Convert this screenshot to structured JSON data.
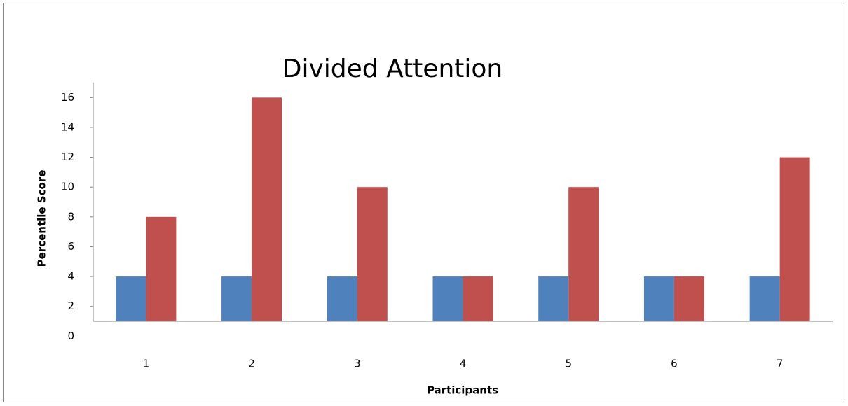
{
  "chart_data": {
    "type": "bar",
    "title": "Divided Attention",
    "x_label": "Participants",
    "y_label": "Percentile Score",
    "categories": [
      "1",
      "2",
      "3",
      "4",
      "5",
      "6",
      "7"
    ],
    "series": [
      {
        "color": "#4f81bd",
        "values": [
          4,
          4,
          4,
          4,
          4,
          4,
          4
        ]
      },
      {
        "color": "#c0504d",
        "values": [
          8,
          16,
          10,
          4,
          10,
          4,
          12
        ]
      }
    ],
    "ylim": [
      1,
      17
    ],
    "yticks": [
      0,
      2,
      4,
      6,
      8,
      10,
      12,
      14,
      16
    ],
    "grid": false
  }
}
